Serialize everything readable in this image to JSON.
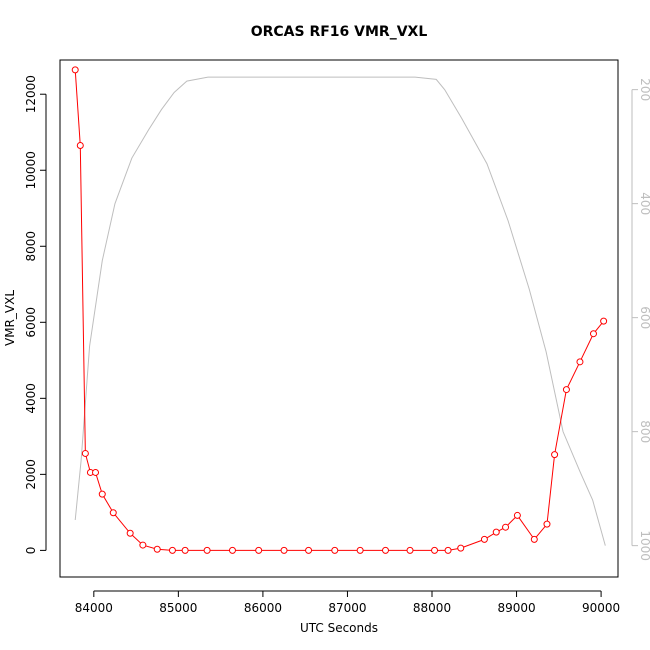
{
  "chart_data": {
    "type": "line",
    "title": "ORCAS RF16 VMR_VXL",
    "xlabel": "UTC Seconds",
    "ylabel": "VMR_VXL",
    "xlim": [
      83600,
      90200
    ],
    "ylim": [
      -700,
      12900
    ],
    "y2lim": [
      1055,
      148
    ],
    "y2_reversed": true,
    "x_ticks": [
      84000,
      85000,
      86000,
      87000,
      88000,
      89000,
      90000
    ],
    "y_ticks": [
      0,
      2000,
      4000,
      6000,
      8000,
      10000,
      12000
    ],
    "y2_ticks": [
      200,
      400,
      600,
      800,
      1000
    ],
    "grid": false,
    "colors": {
      "vmr": "#ff0000",
      "pressure": "#bebebe",
      "axis": "#000000",
      "axis2": "#bebebe"
    },
    "series": [
      {
        "axis": "left",
        "style": "line+open-circles",
        "x": [
          83780,
          83840,
          83900,
          83960,
          84020,
          84100,
          84230,
          84430,
          84580,
          84750,
          84930,
          85080,
          85340,
          85640,
          85950,
          86250,
          86540,
          86850,
          87150,
          87450,
          87740,
          88030,
          88190,
          88340,
          88620,
          88760,
          88870,
          89010,
          89210,
          89360,
          89450,
          89590,
          89750,
          89910,
          90030
        ],
        "y": [
          12640,
          10650,
          2550,
          2050,
          2050,
          1480,
          990,
          450,
          140,
          30,
          0,
          0,
          0,
          0,
          0,
          0,
          0,
          0,
          0,
          0,
          0,
          0,
          0,
          60,
          290,
          480,
          610,
          920,
          290,
          690,
          2520,
          4230,
          4960,
          5700,
          6030
        ]
      },
      {
        "axis": "right",
        "style": "line",
        "x": [
          83780,
          83850,
          83950,
          84100,
          84250,
          84450,
          84650,
          84800,
          84950,
          85100,
          85350,
          85700,
          86500,
          87500,
          87800,
          88050,
          88150,
          88350,
          88650,
          88900,
          89150,
          89350,
          89550,
          89750,
          89900,
          90050
        ],
        "y": [
          955,
          850,
          650,
          500,
          400,
          320,
          270,
          235,
          205,
          185,
          178,
          178,
          178,
          178,
          178,
          182,
          200,
          250,
          330,
          430,
          550,
          660,
          800,
          870,
          920,
          1000
        ]
      }
    ]
  }
}
